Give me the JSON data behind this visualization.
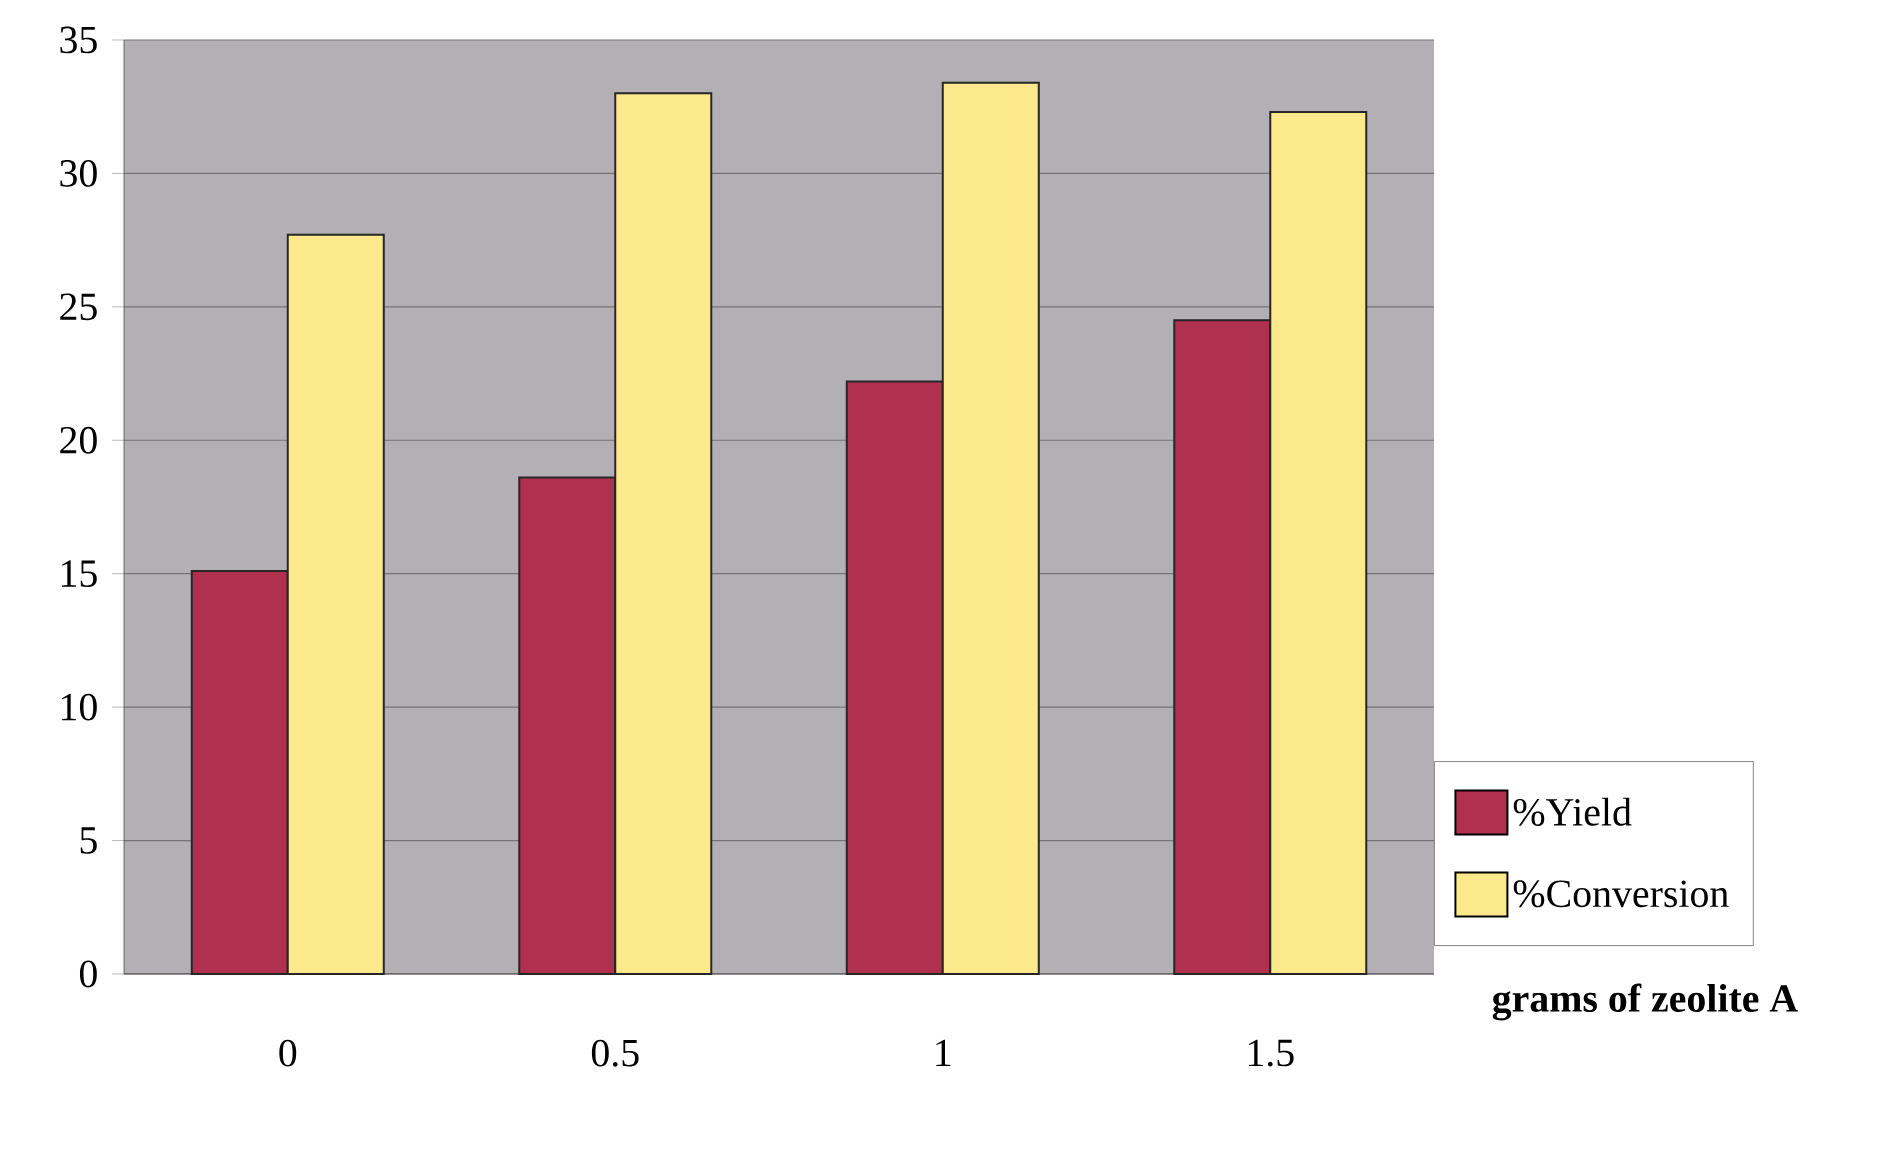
{
  "chart_data": {
    "type": "bar",
    "xlabel": "grams of zeolite A",
    "categories": [
      "0",
      "0.5",
      "1",
      "1.5"
    ],
    "series": [
      {
        "name": "%Yield",
        "color": "#b03050",
        "values": [
          15.1,
          18.6,
          22.2,
          24.5
        ]
      },
      {
        "name": "%Conversion",
        "color": "#fce98c",
        "values": [
          27.7,
          33.0,
          33.4,
          32.3
        ]
      }
    ],
    "ylim": [
      0,
      35
    ],
    "yticks": [
      0,
      5,
      10,
      15,
      20,
      25,
      30,
      35
    ],
    "grid": "y",
    "legend": "bottom right"
  }
}
